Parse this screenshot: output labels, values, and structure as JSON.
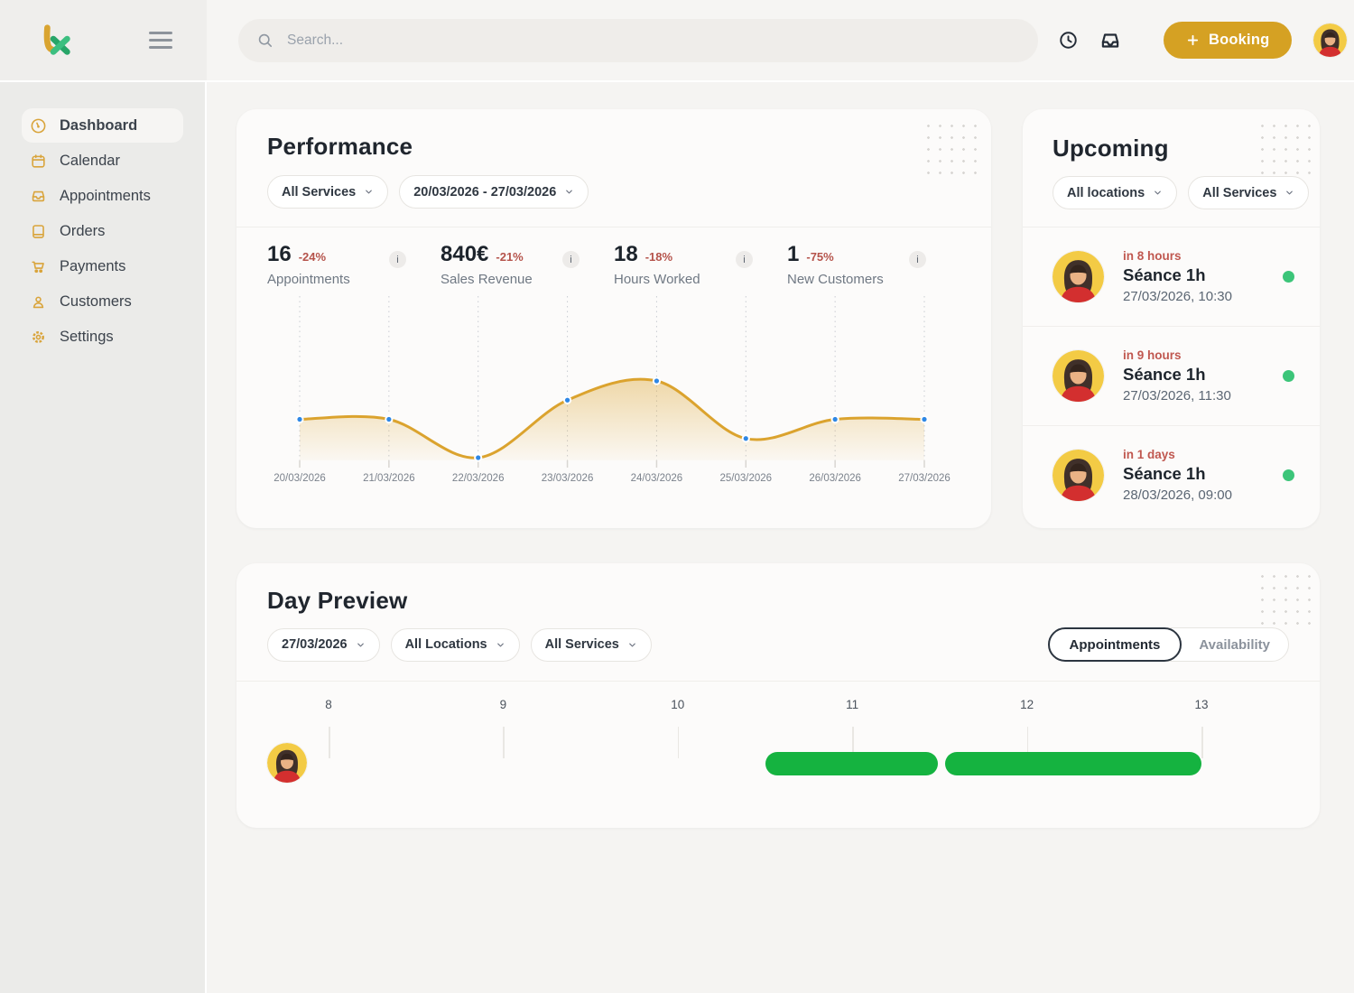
{
  "colors": {
    "accent_gold": "#d5a123",
    "sidebar_icon_gold": "#d9a43b",
    "chart_line": "#dba32e",
    "chart_dot_blue": "#2e87e5",
    "delta_red": "#b5534b",
    "eta_red": "#c05850",
    "upcoming_dot_green": "#3cc579",
    "timeline_bar_green": "#15b340"
  },
  "topbar": {
    "search_placeholder": "Search...",
    "booking_label": "Booking"
  },
  "sidebar": {
    "items": [
      {
        "label": "Dashboard",
        "icon": "gauge",
        "active": true
      },
      {
        "label": "Calendar",
        "icon": "calendar",
        "active": false
      },
      {
        "label": "Appointments",
        "icon": "tray",
        "active": false
      },
      {
        "label": "Orders",
        "icon": "book",
        "active": false
      },
      {
        "label": "Payments",
        "icon": "cart",
        "active": false
      },
      {
        "label": "Customers",
        "icon": "person",
        "active": false
      },
      {
        "label": "Settings",
        "icon": "gear",
        "active": false
      }
    ]
  },
  "performance": {
    "title": "Performance",
    "service_filter": "All Services",
    "date_filter": "20/03/2026 - 27/03/2026",
    "info_icon": "i",
    "kpis": [
      {
        "value": "16",
        "delta": "-24%",
        "label": "Appointments"
      },
      {
        "value": "840€",
        "delta": "-21%",
        "label": "Sales Revenue"
      },
      {
        "value": "18",
        "delta": "-18%",
        "label": "Hours Worked"
      },
      {
        "value": "1",
        "delta": "-75%",
        "label": "New Customers"
      }
    ],
    "chart_data": {
      "type": "area",
      "x": [
        "20/03/2026",
        "21/03/2026",
        "22/03/2026",
        "23/03/2026",
        "24/03/2026",
        "25/03/2026",
        "26/03/2026",
        "27/03/2026"
      ],
      "values": [
        2,
        2,
        0,
        3,
        4,
        1,
        2,
        2
      ],
      "ylim": [
        0,
        4.3
      ],
      "grid": "vertical-dotted",
      "legend": "none"
    }
  },
  "upcoming": {
    "title": "Upcoming",
    "location_filter": "All locations",
    "service_filter": "All Services",
    "items": [
      {
        "eta": "in 8 hours",
        "title": "Séance 1h",
        "datetime": "27/03/2026, 10:30"
      },
      {
        "eta": "in 9 hours",
        "title": "Séance 1h",
        "datetime": "27/03/2026, 11:30"
      },
      {
        "eta": "in 1 days",
        "title": "Séance 1h",
        "datetime": "28/03/2026, 09:00"
      }
    ]
  },
  "day_preview": {
    "title": "Day Preview",
    "date_filter": "27/03/2026",
    "location_filter": "All Locations",
    "service_filter": "All Services",
    "tabs": [
      {
        "label": "Appointments",
        "active": true
      },
      {
        "label": "Availability",
        "active": false
      }
    ],
    "timeline": {
      "hours": [
        8,
        9,
        10,
        11,
        12,
        13
      ],
      "bars": [
        {
          "start": 10.5,
          "end": 11.49
        },
        {
          "start": 11.53,
          "end": 13.0
        }
      ]
    }
  }
}
